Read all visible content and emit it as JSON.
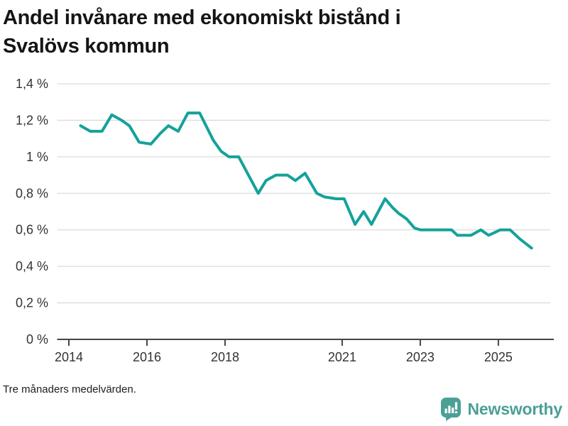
{
  "header": {
    "title_line1": "Andel invånare med ekonomiskt bistånd i",
    "title_line2": "Svalövs kommun"
  },
  "footer": {
    "note": "Tre månaders medelvärden.",
    "logo_text": "Newsworthy"
  },
  "colors": {
    "line": "#14a29a",
    "logo": "#4aa096",
    "grid": "#dcdcdc",
    "axis": "#454545",
    "tick_text": "#333333"
  },
  "chart_data": {
    "type": "line",
    "title": "Andel invånare med ekonomiskt bistånd i Svalövs kommun",
    "note": "Tre månaders medelvärden.",
    "unit": "%",
    "grid": "horizontal",
    "legend": "none",
    "xlim": [
      2013.7,
      2026.42
    ],
    "ylim": [
      0,
      1.4
    ],
    "x_ticks": {
      "values": [
        2014,
        2016,
        2018,
        2021,
        2023,
        2025
      ],
      "labels": [
        "2014",
        "2016",
        "2018",
        "2021",
        "2023",
        "2025"
      ]
    },
    "y_ticks": {
      "values": [
        0,
        0.2,
        0.4,
        0.6,
        0.8,
        1.0,
        1.2,
        1.4
      ],
      "labels": [
        "0 %",
        "0,2 %",
        "0,4 %",
        "0,6 %",
        "0,8 %",
        "1 %",
        "1,2 %",
        "1,4 %"
      ]
    },
    "series": [
      {
        "name": "Andel invånare med ekonomiskt bistånd, Svalövs kommun",
        "points": [
          [
            2014.3,
            1.17
          ],
          [
            2014.55,
            1.14
          ],
          [
            2014.85,
            1.14
          ],
          [
            2015.1,
            1.23
          ],
          [
            2015.35,
            1.2
          ],
          [
            2015.55,
            1.17
          ],
          [
            2015.8,
            1.08
          ],
          [
            2016.1,
            1.07
          ],
          [
            2016.35,
            1.13
          ],
          [
            2016.55,
            1.17
          ],
          [
            2016.8,
            1.14
          ],
          [
            2017.05,
            1.24
          ],
          [
            2017.35,
            1.24
          ],
          [
            2017.7,
            1.09
          ],
          [
            2017.9,
            1.03
          ],
          [
            2018.1,
            1.0
          ],
          [
            2018.35,
            1.0
          ],
          [
            2018.85,
            0.8
          ],
          [
            2019.05,
            0.87
          ],
          [
            2019.3,
            0.9
          ],
          [
            2019.6,
            0.9
          ],
          [
            2019.8,
            0.87
          ],
          [
            2020.05,
            0.91
          ],
          [
            2020.35,
            0.8
          ],
          [
            2020.55,
            0.78
          ],
          [
            2020.85,
            0.77
          ],
          [
            2021.05,
            0.77
          ],
          [
            2021.33,
            0.63
          ],
          [
            2021.55,
            0.7
          ],
          [
            2021.75,
            0.63
          ],
          [
            2022.1,
            0.77
          ],
          [
            2022.3,
            0.72
          ],
          [
            2022.45,
            0.69
          ],
          [
            2022.65,
            0.66
          ],
          [
            2022.85,
            0.61
          ],
          [
            2023.0,
            0.6
          ],
          [
            2023.45,
            0.6
          ],
          [
            2023.8,
            0.6
          ],
          [
            2023.95,
            0.57
          ],
          [
            2024.3,
            0.57
          ],
          [
            2024.55,
            0.6
          ],
          [
            2024.75,
            0.57
          ],
          [
            2025.05,
            0.6
          ],
          [
            2025.3,
            0.6
          ],
          [
            2025.55,
            0.55
          ],
          [
            2025.85,
            0.5
          ]
        ]
      }
    ]
  }
}
